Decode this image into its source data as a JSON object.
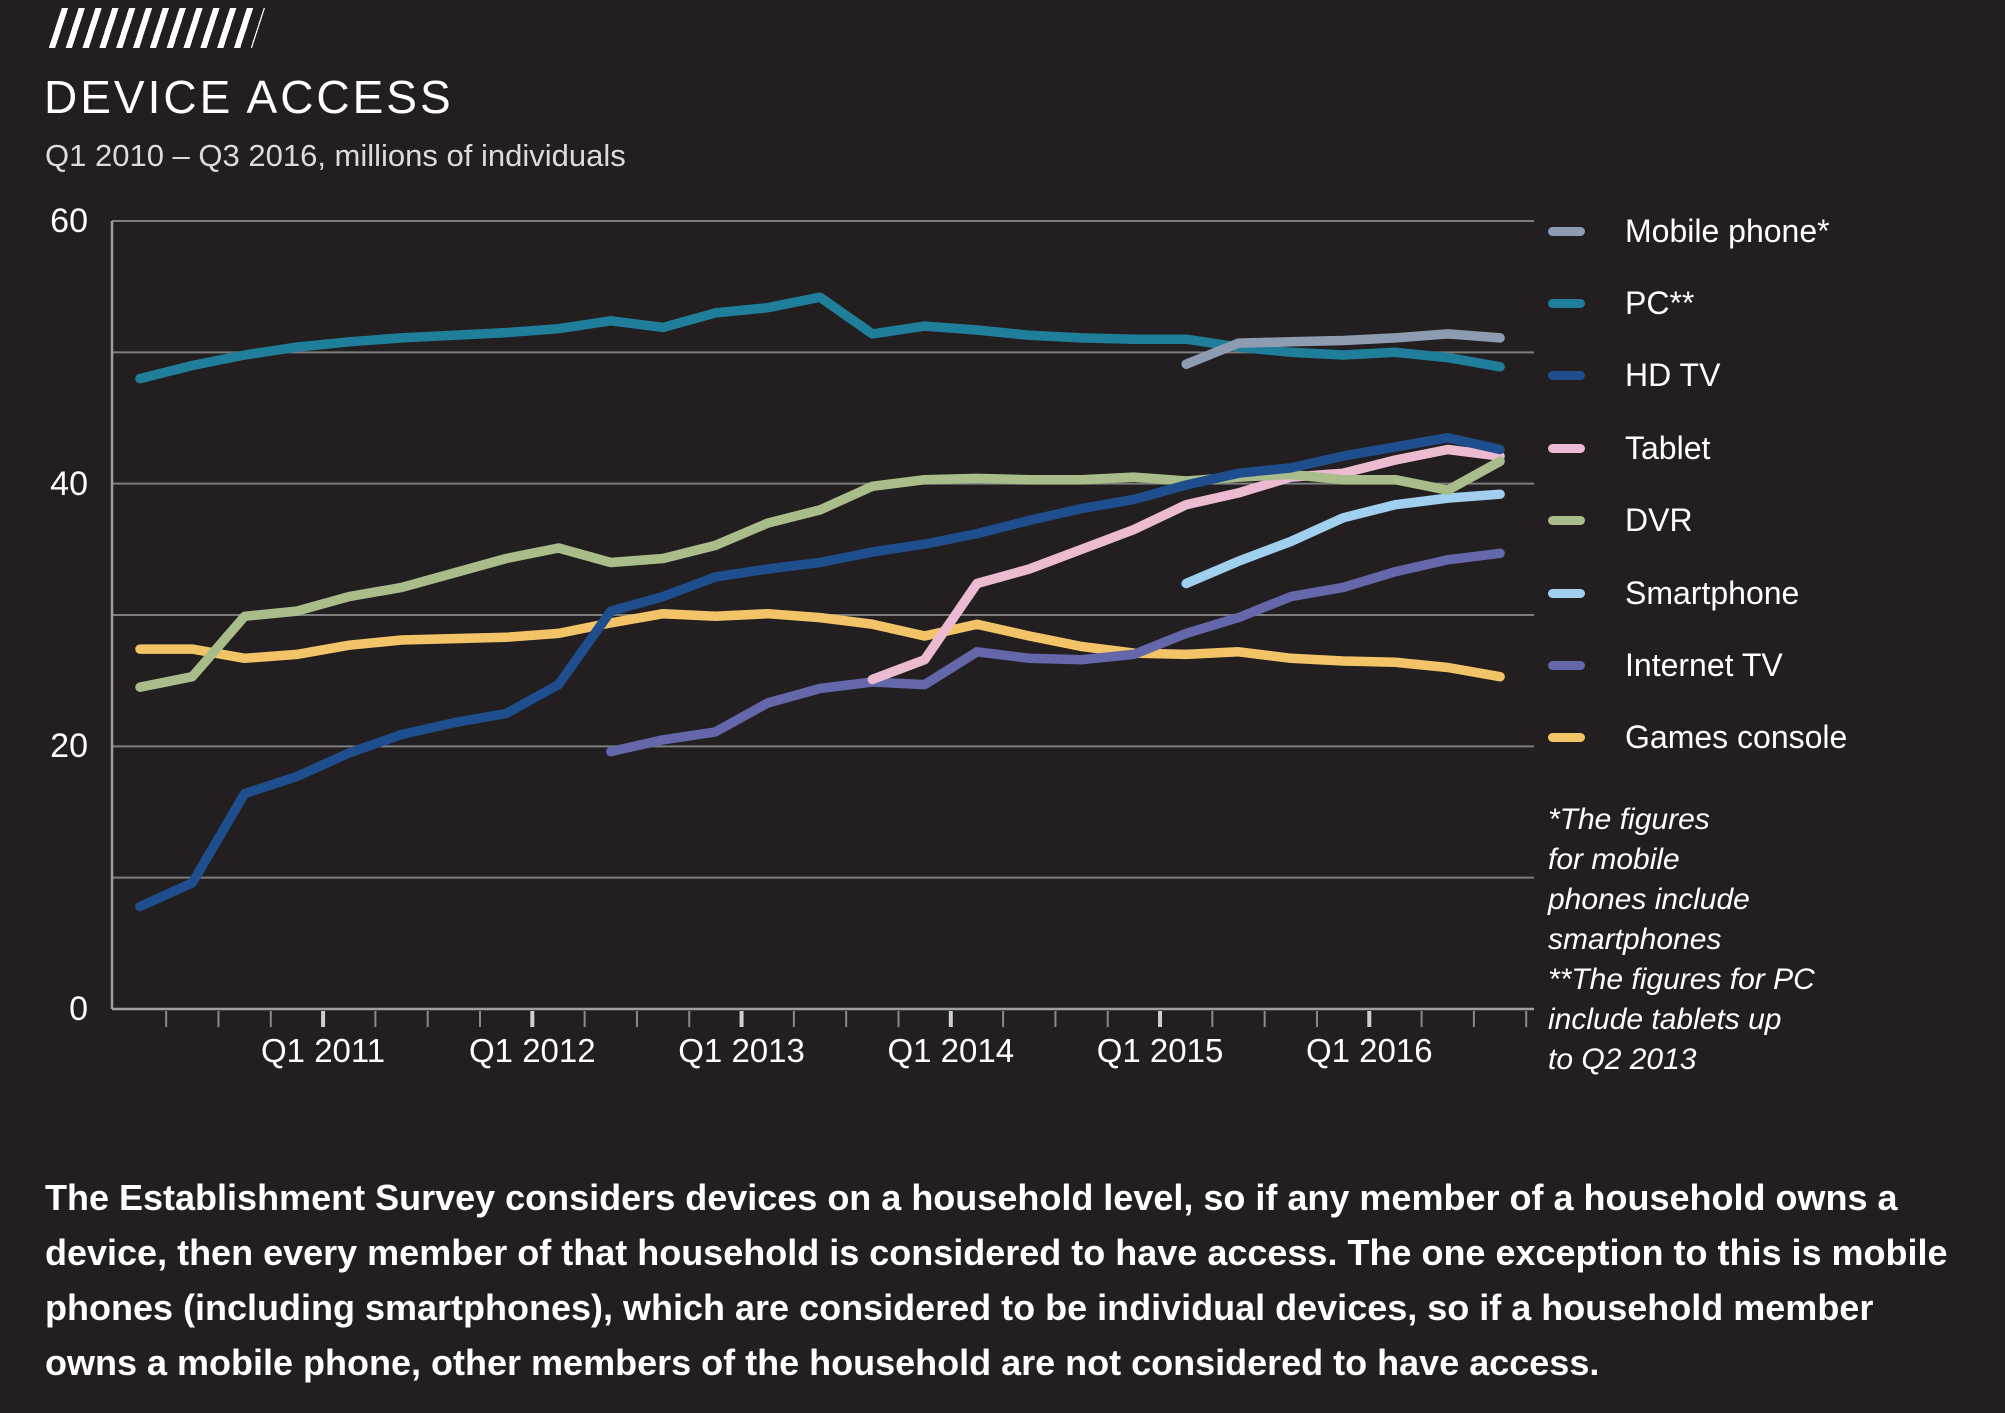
{
  "header": {
    "title": "DEVICE ACCESS",
    "subtitle": "Q1 2010 – Q3 2016, millions of individuals"
  },
  "chart_data": {
    "type": "line",
    "title": "DEVICE ACCESS",
    "subtitle": "Q1 2010 – Q3 2016, millions of individuals",
    "ylabel": "millions of individuals",
    "ylim": [
      0,
      60
    ],
    "grid": true,
    "gridline_step": 10,
    "legend_position": "right",
    "y_tick_labels": [
      60,
      40,
      20,
      0
    ],
    "x_tick_labels": [
      {
        "label": "Q1 2011",
        "quarter_index": 4
      },
      {
        "label": "Q1 2012",
        "quarter_index": 8
      },
      {
        "label": "Q1 2013",
        "quarter_index": 12
      },
      {
        "label": "Q1 2014",
        "quarter_index": 16
      },
      {
        "label": "Q1 2015",
        "quarter_index": 20
      },
      {
        "label": "Q1 2016",
        "quarter_index": 24
      }
    ],
    "quarters": [
      "Q1 2010",
      "Q2 2010",
      "Q3 2010",
      "Q4 2010",
      "Q1 2011",
      "Q2 2011",
      "Q3 2011",
      "Q4 2011",
      "Q1 2012",
      "Q2 2012",
      "Q3 2012",
      "Q4 2012",
      "Q1 2013",
      "Q2 2013",
      "Q3 2013",
      "Q4 2013",
      "Q1 2014",
      "Q2 2014",
      "Q3 2014",
      "Q4 2014",
      "Q1 2015",
      "Q2 2015",
      "Q3 2015",
      "Q4 2015",
      "Q1 2016",
      "Q2 2016",
      "Q3 2016"
    ],
    "series": [
      {
        "name": "Mobile phone*",
        "color": "#8e9cb1",
        "z": 2,
        "start_index": 20,
        "values": [
          49.1,
          50.7,
          50.8,
          50.9,
          51.1,
          51.4,
          51.1
        ]
      },
      {
        "name": "PC**",
        "color": "#1f7e99",
        "z": 1,
        "start_index": 0,
        "values": [
          48.0,
          49.0,
          49.8,
          50.4,
          50.8,
          51.1,
          51.3,
          51.5,
          51.8,
          52.4,
          51.9,
          53.0,
          53.4,
          54.2,
          51.4,
          52.0,
          51.7,
          51.3,
          51.1,
          51.0,
          51.0,
          50.4,
          50.0,
          49.8,
          50.0,
          49.6,
          48.9
        ]
      },
      {
        "name": "HD TV",
        "color": "#1e4e8d",
        "z": 8,
        "start_index": 0,
        "values": [
          7.8,
          9.6,
          16.4,
          17.7,
          19.5,
          20.9,
          21.8,
          22.5,
          24.7,
          30.3,
          31.4,
          32.9,
          33.5,
          34.0,
          34.8,
          35.4,
          36.2,
          37.2,
          38.1,
          38.8,
          39.9,
          40.8,
          41.2,
          42.1,
          42.8,
          43.5,
          42.6
        ]
      },
      {
        "name": "Tablet",
        "color": "#ecbbd2",
        "z": 6,
        "start_index": 14,
        "values": [
          25.1,
          26.6,
          32.4,
          33.5,
          35.0,
          36.5,
          38.4,
          39.3,
          40.5,
          40.8,
          41.8,
          42.6,
          42.1
        ]
      },
      {
        "name": "DVR",
        "color": "#a9bd8a",
        "z": 7,
        "start_index": 0,
        "values": [
          24.5,
          25.3,
          29.9,
          30.3,
          31.4,
          32.1,
          33.2,
          34.3,
          35.1,
          34.0,
          34.3,
          35.3,
          37.0,
          38.0,
          39.8,
          40.3,
          40.4,
          40.3,
          40.3,
          40.5,
          40.2,
          40.5,
          40.7,
          40.3,
          40.3,
          39.5,
          41.7
        ]
      },
      {
        "name": "Smartphone",
        "color": "#a0cfef",
        "z": 5,
        "start_index": 20,
        "values": [
          32.4,
          34.1,
          35.6,
          37.4,
          38.4,
          38.9,
          39.2
        ]
      },
      {
        "name": "Internet TV",
        "color": "#6467aa",
        "z": 4,
        "start_index": 9,
        "values": [
          19.6,
          20.5,
          21.1,
          23.3,
          24.4,
          24.9,
          24.7,
          27.2,
          26.7,
          26.6,
          27.0,
          28.6,
          29.8,
          31.4,
          32.1,
          33.3,
          34.2,
          34.7
        ]
      },
      {
        "name": "Games console",
        "color": "#f3c368",
        "z": 3,
        "start_index": 0,
        "values": [
          27.4,
          27.4,
          26.7,
          27.0,
          27.7,
          28.1,
          28.2,
          28.3,
          28.6,
          29.4,
          30.1,
          29.9,
          30.1,
          29.8,
          29.3,
          28.4,
          29.3,
          28.4,
          27.6,
          27.1,
          27.0,
          27.2,
          26.7,
          26.5,
          26.4,
          26.0,
          25.3
        ]
      }
    ],
    "footnote": "*The figures\nfor mobile\nphones include\nsmartphones\n**The figures for PC\ninclude tablets up\nto Q2 2013"
  },
  "colors": {
    "background": "#231f20",
    "gridline": "#7d7d7d",
    "axis": "#9f9f9f",
    "tick": "#8a8a8a",
    "tick_year": "#cfcfcf",
    "text": "#ffffff"
  },
  "description": {
    "text": "The Establishment Survey considers devices on a household level, so if any member of a household owns a device, then every member of that household is considered to have access. The one exception to this is mobile phones (including smartphones), which are considered to be individual devices, so if a household member owns a mobile phone, other members of the household are not considered to have access."
  }
}
